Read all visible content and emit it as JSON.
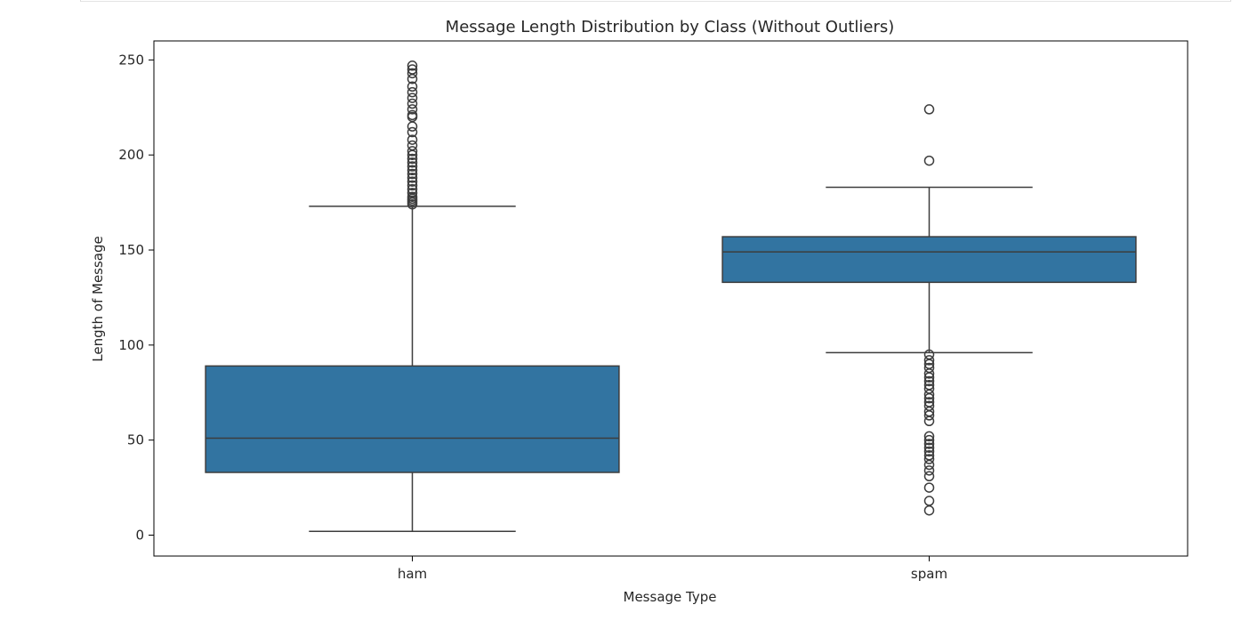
{
  "chart_data": {
    "type": "box",
    "title": "Message Length Distribution by Class (Without Outliers)",
    "xlabel": "Message Type",
    "ylabel": "Length of Message",
    "ylim": [
      -11,
      260
    ],
    "yticks": [
      0,
      50,
      100,
      150,
      200,
      250
    ],
    "categories": [
      "ham",
      "spam"
    ],
    "boxes": [
      {
        "category": "ham",
        "whisker_low": 2,
        "q1": 33,
        "median": 51,
        "q3": 89,
        "whisker_high": 173,
        "outliers": [
          174,
          175,
          176,
          177,
          178,
          180,
          182,
          184,
          186,
          188,
          190,
          192,
          194,
          196,
          198,
          200,
          202,
          205,
          208,
          212,
          215,
          220,
          221,
          224,
          227,
          230,
          233,
          236,
          240,
          243,
          245,
          247
        ]
      },
      {
        "category": "spam",
        "whisker_low": 96,
        "q1": 133,
        "median": 149,
        "q3": 157,
        "whisker_high": 183,
        "outliers": [
          224,
          197,
          95,
          92,
          90,
          88,
          85,
          83,
          81,
          79,
          77,
          74,
          72,
          70,
          68,
          65,
          63,
          60,
          52,
          50,
          48,
          46,
          44,
          42,
          40,
          37,
          34,
          31,
          25,
          18,
          13
        ]
      }
    ],
    "color": "#3274a1",
    "line_color": "#3d3d3d",
    "grid": false
  }
}
